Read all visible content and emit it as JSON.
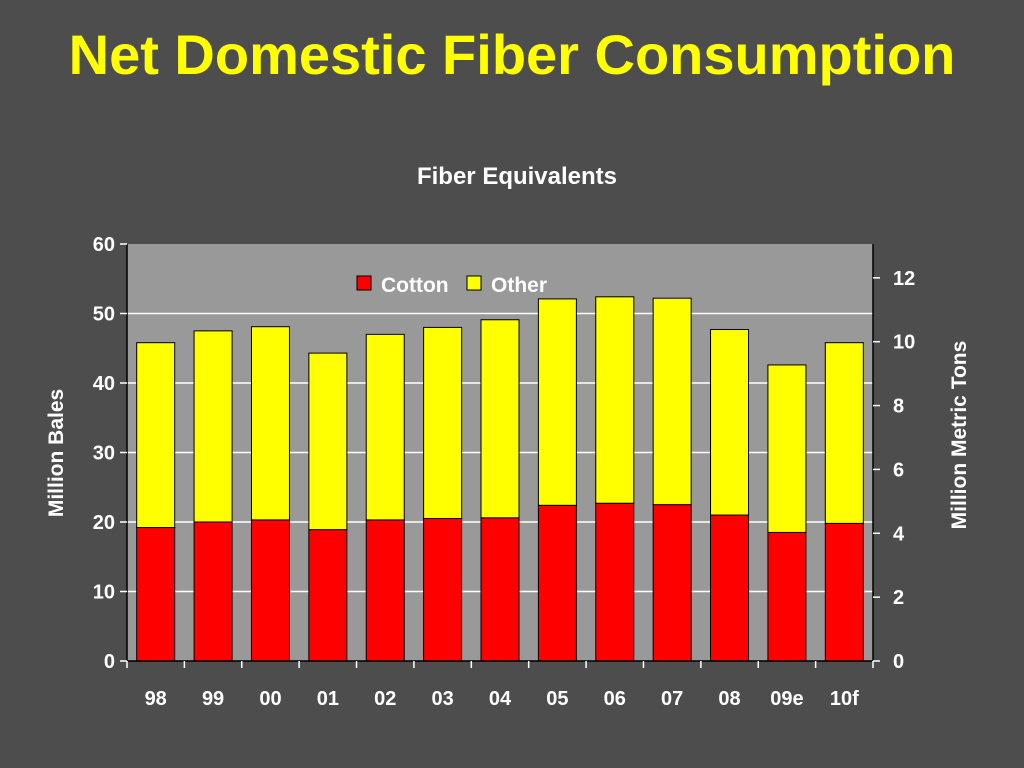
{
  "slide": {
    "title": "Net Domestic Fiber Consumption"
  },
  "chart_data": {
    "type": "bar",
    "stacked": true,
    "title": "Fiber Equivalents",
    "ylabel": "Million Bales",
    "y2label": "Million Metric Tons",
    "ylim": [
      0,
      60
    ],
    "y2lim": [
      0,
      13.06
    ],
    "yticks": [
      0,
      10,
      20,
      30,
      40,
      50,
      60
    ],
    "y2ticks": [
      0,
      2,
      4,
      6,
      8,
      10,
      12
    ],
    "categories": [
      "98",
      "99",
      "00",
      "01",
      "02",
      "03",
      "04",
      "05",
      "06",
      "07",
      "08",
      "09e",
      "10f"
    ],
    "series": [
      {
        "name": "Cotton",
        "color": "#ff0000",
        "values": [
          19.2,
          20.0,
          20.3,
          18.9,
          20.3,
          20.5,
          20.6,
          22.4,
          22.7,
          22.5,
          21.0,
          18.5,
          19.8
        ]
      },
      {
        "name": "Other",
        "color": "#ffff00",
        "values": [
          26.6,
          27.5,
          27.8,
          25.4,
          26.7,
          27.5,
          28.5,
          29.7,
          29.7,
          29.7,
          26.7,
          24.1,
          26.0
        ]
      }
    ],
    "legend_position": "top-center",
    "grid": true,
    "plot_background": "#999999",
    "gridline_color": "#ffffff"
  }
}
